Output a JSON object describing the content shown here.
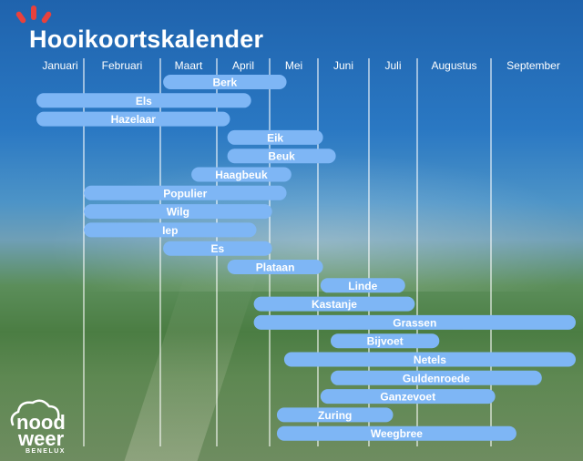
{
  "title": "Hooikoortskalender",
  "logo": {
    "line1": "nood",
    "line2": "weer",
    "line3": "BENELUX"
  },
  "colors": {
    "bar": "#7eb6f5",
    "sun": "#e8413c",
    "text": "#ffffff"
  },
  "chart_data": {
    "type": "gantt",
    "title": "Hooikoortskalender",
    "months": [
      "Januari",
      "Februari",
      "Maart",
      "April",
      "Mei",
      "Juni",
      "Juli",
      "Augustus",
      "September"
    ],
    "grid": true,
    "bars": [
      {
        "name": "Berk",
        "start": 2.05,
        "end": 4.35
      },
      {
        "name": "Els",
        "start": 0.0,
        "end": 3.65
      },
      {
        "name": "Hazelaar",
        "start": 0.0,
        "end": 3.25
      },
      {
        "name": "Eik",
        "start": 3.2,
        "end": 5.1
      },
      {
        "name": "Beuk",
        "start": 3.2,
        "end": 5.35
      },
      {
        "name": "Haagbeuk",
        "start": 2.55,
        "end": 4.45
      },
      {
        "name": "Populier",
        "start": 1.0,
        "end": 4.35
      },
      {
        "name": "Wilg",
        "start": 1.0,
        "end": 4.05
      },
      {
        "name": "Iep",
        "start": 1.0,
        "end": 3.75
      },
      {
        "name": "Es",
        "start": 2.05,
        "end": 4.05
      },
      {
        "name": "Plataan",
        "start": 3.2,
        "end": 5.1
      },
      {
        "name": "Linde",
        "start": 5.05,
        "end": 6.75
      },
      {
        "name": "Kastanje",
        "start": 3.7,
        "end": 6.95
      },
      {
        "name": "Grassen",
        "start": 3.7,
        "end": 9.0
      },
      {
        "name": "Bijvoet",
        "start": 5.25,
        "end": 7.3
      },
      {
        "name": "Netels",
        "start": 4.3,
        "end": 9.0
      },
      {
        "name": "Guldenroede",
        "start": 5.25,
        "end": 8.6
      },
      {
        "name": "Ganzevoet",
        "start": 5.05,
        "end": 8.05
      },
      {
        "name": "Zuring",
        "start": 4.15,
        "end": 6.5
      },
      {
        "name": "Weegbree",
        "start": 4.15,
        "end": 8.3
      }
    ]
  }
}
